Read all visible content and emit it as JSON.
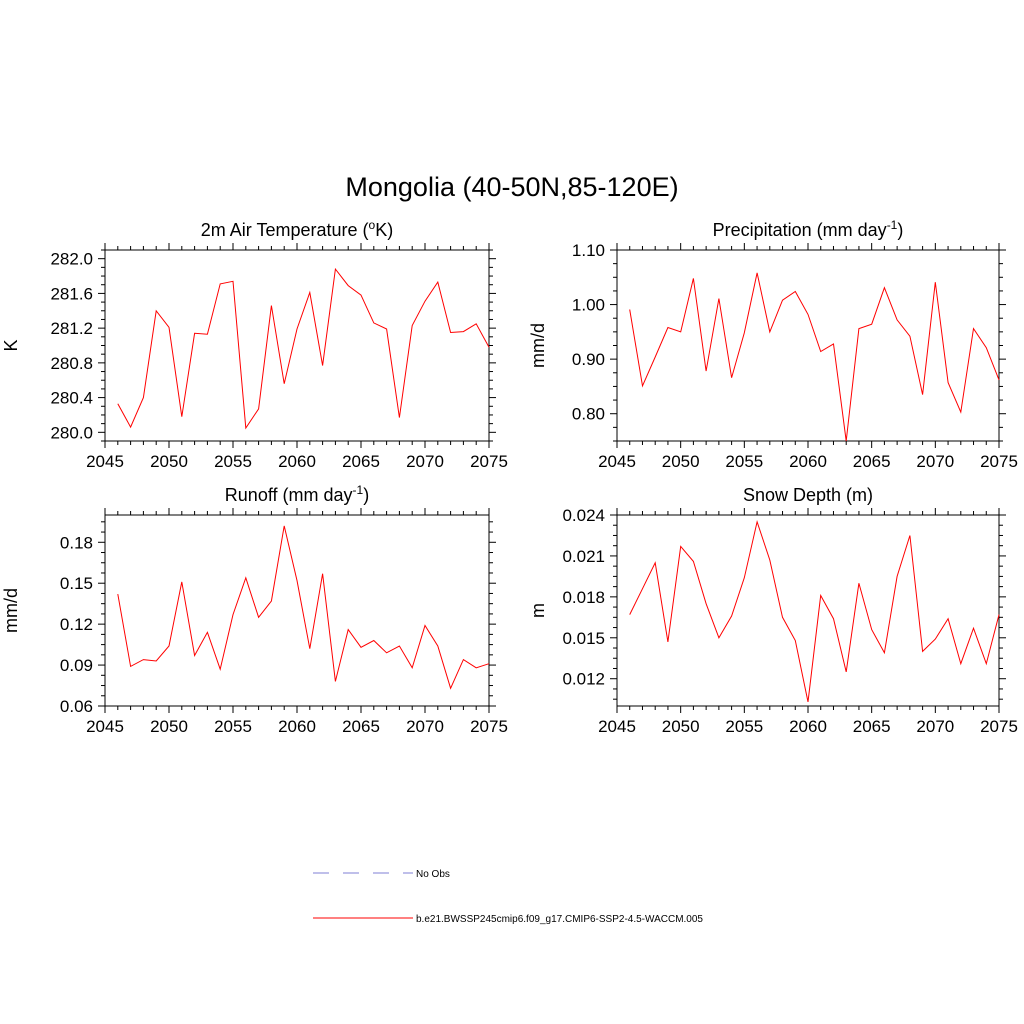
{
  "title": "Mongolia (40-50N,85-120E)",
  "colors": {
    "model_line": "#ff0000",
    "obs_line": "#9999dd",
    "axis": "#000000"
  },
  "legend": {
    "entries": [
      {
        "label": "No Obs",
        "style": "dashed"
      },
      {
        "label": "b.e21.BWSSP245cmip6.f09_g17.CMIP6-SSP2-4.5-WACCM.005",
        "style": "solid"
      }
    ]
  },
  "chart_data": [
    {
      "type": "line",
      "title": "2m Air Temperature (°K)",
      "title_parts": {
        "pre": "2m Air Temperature (",
        "sup": "o",
        "post": "K)"
      },
      "ylabel": "K",
      "xlim": [
        2045,
        2075
      ],
      "ylim": [
        279.9,
        282.1
      ],
      "xticks": [
        2045,
        2050,
        2055,
        2060,
        2065,
        2070,
        2075
      ],
      "yticks": [
        280.0,
        280.4,
        280.8,
        281.2,
        281.6,
        282.0
      ],
      "ytick_labels": [
        "280.0",
        "280.4",
        "280.8",
        "281.2",
        "281.6",
        "282.0"
      ],
      "x": [
        2046,
        2047,
        2048,
        2049,
        2050,
        2051,
        2052,
        2053,
        2054,
        2055,
        2056,
        2057,
        2058,
        2059,
        2060,
        2061,
        2062,
        2063,
        2064,
        2065,
        2066,
        2067,
        2068,
        2069,
        2070,
        2071,
        2072,
        2073,
        2074,
        2075
      ],
      "series": [
        {
          "values": [
            280.33,
            280.06,
            280.4,
            281.4,
            281.21,
            280.18,
            281.14,
            281.13,
            281.71,
            281.74,
            280.05,
            280.27,
            281.46,
            280.56,
            281.19,
            281.61,
            280.77,
            281.88,
            281.69,
            281.58,
            281.26,
            281.19,
            280.17,
            281.23,
            281.51,
            281.73,
            281.15,
            281.16,
            281.25,
            280.98
          ]
        }
      ]
    },
    {
      "type": "line",
      "title": "Precipitation (mm day-1)",
      "title_parts": {
        "pre": "Precipitation (mm day",
        "sup": "-1",
        "post": ")"
      },
      "ylabel": "mm/d",
      "xlim": [
        2045,
        2075
      ],
      "ylim": [
        0.75,
        1.1
      ],
      "xticks": [
        2045,
        2050,
        2055,
        2060,
        2065,
        2070,
        2075
      ],
      "yticks": [
        0.8,
        0.9,
        1.0,
        1.1
      ],
      "ytick_labels": [
        "0.80",
        "0.90",
        "1.00",
        "1.10"
      ],
      "x": [
        2046,
        2047,
        2048,
        2049,
        2050,
        2051,
        2052,
        2053,
        2054,
        2055,
        2056,
        2057,
        2058,
        2059,
        2060,
        2061,
        2062,
        2063,
        2064,
        2065,
        2066,
        2067,
        2068,
        2069,
        2070,
        2071,
        2072,
        2073,
        2074,
        2075
      ],
      "series": [
        {
          "values": [
            0.991,
            0.851,
            0.904,
            0.958,
            0.95,
            1.048,
            0.878,
            1.011,
            0.866,
            0.948,
            1.058,
            0.95,
            1.008,
            1.024,
            0.982,
            0.914,
            0.928,
            0.75,
            0.956,
            0.964,
            1.031,
            0.972,
            0.942,
            0.835,
            1.041,
            0.857,
            0.803,
            0.956,
            0.921,
            0.862
          ]
        }
      ]
    },
    {
      "type": "line",
      "title": "Runoff (mm day-1)",
      "title_parts": {
        "pre": "Runoff (mm day",
        "sup": "-1",
        "post": ")"
      },
      "ylabel": "mm/d",
      "xlim": [
        2045,
        2075
      ],
      "ylim": [
        0.06,
        0.2
      ],
      "xticks": [
        2045,
        2050,
        2055,
        2060,
        2065,
        2070,
        2075
      ],
      "yticks": [
        0.06,
        0.09,
        0.12,
        0.15,
        0.18
      ],
      "ytick_labels": [
        "0.06",
        "0.09",
        "0.12",
        "0.15",
        "0.18"
      ],
      "x": [
        2046,
        2047,
        2048,
        2049,
        2050,
        2051,
        2052,
        2053,
        2054,
        2055,
        2056,
        2057,
        2058,
        2059,
        2060,
        2061,
        2062,
        2063,
        2064,
        2065,
        2066,
        2067,
        2068,
        2069,
        2070,
        2071,
        2072,
        2073,
        2074,
        2075
      ],
      "series": [
        {
          "values": [
            0.142,
            0.089,
            0.094,
            0.093,
            0.104,
            0.151,
            0.097,
            0.114,
            0.087,
            0.127,
            0.154,
            0.125,
            0.137,
            0.192,
            0.152,
            0.102,
            0.157,
            0.078,
            0.116,
            0.103,
            0.108,
            0.099,
            0.104,
            0.088,
            0.119,
            0.104,
            0.073,
            0.094,
            0.088,
            0.091
          ]
        }
      ]
    },
    {
      "type": "line",
      "title": "Snow Depth (m)",
      "title_parts": {
        "pre": "Snow Depth (m)",
        "sup": "",
        "post": ""
      },
      "ylabel": "m",
      "xlim": [
        2045,
        2075
      ],
      "ylim": [
        0.01,
        0.024
      ],
      "xticks": [
        2045,
        2050,
        2055,
        2060,
        2065,
        2070,
        2075
      ],
      "yticks": [
        0.012,
        0.015,
        0.018,
        0.021,
        0.024
      ],
      "ytick_labels": [
        "0.012",
        "0.015",
        "0.018",
        "0.021",
        "0.024"
      ],
      "x": [
        2046,
        2047,
        2048,
        2049,
        2050,
        2051,
        2052,
        2053,
        2054,
        2055,
        2056,
        2057,
        2058,
        2059,
        2060,
        2061,
        2062,
        2063,
        2064,
        2065,
        2066,
        2067,
        2068,
        2069,
        2070,
        2071,
        2072,
        2073,
        2074,
        2075
      ],
      "series": [
        {
          "values": [
            0.0167,
            0.0186,
            0.0205,
            0.0147,
            0.0217,
            0.0206,
            0.0175,
            0.015,
            0.0166,
            0.0194,
            0.0235,
            0.0207,
            0.0165,
            0.0148,
            0.0103,
            0.0181,
            0.0164,
            0.0125,
            0.019,
            0.0156,
            0.0139,
            0.0195,
            0.0225,
            0.014,
            0.0149,
            0.0164,
            0.0131,
            0.0157,
            0.0131,
            0.0167
          ]
        }
      ]
    }
  ]
}
